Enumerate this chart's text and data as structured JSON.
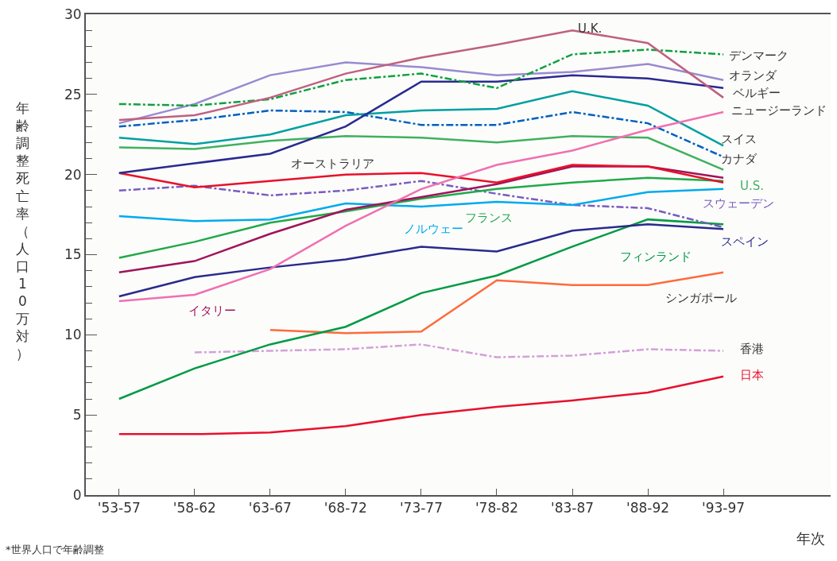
{
  "chart_data": {
    "type": "line",
    "xlabel": "年次",
    "ylabel": "年齢調整死亡率（人口10万対）",
    "annotations": [
      "*世界人口で年齢調整"
    ],
    "categories": [
      "'53-57",
      "'58-62",
      "'63-67",
      "'68-72",
      "'73-77",
      "'78-82",
      "'83-87",
      "'88-92",
      "'93-97"
    ],
    "ylim": [
      0,
      30
    ],
    "yticks": [
      0,
      5,
      10,
      15,
      20,
      25,
      30
    ],
    "grid": false,
    "legend": false,
    "series": [
      {
        "name": "日本",
        "color": "#e8102d",
        "values": [
          3.8,
          3.8,
          3.9,
          4.3,
          5.0,
          5.5,
          5.9,
          6.4,
          7.4
        ]
      },
      {
        "name": "香港",
        "color": "#d4a0d8",
        "line_style": "dashed",
        "values": [
          null,
          8.9,
          9.0,
          9.1,
          9.4,
          8.6,
          8.7,
          9.1,
          9.0
        ]
      },
      {
        "name": "シンガポール",
        "color": "#ff6a3c",
        "values": [
          null,
          null,
          10.3,
          10.1,
          10.2,
          13.4,
          13.1,
          13.1,
          13.9
        ]
      },
      {
        "name": "フィンランド",
        "color": "#009a44",
        "values": [
          6.0,
          7.9,
          9.4,
          10.5,
          12.6,
          13.7,
          15.5,
          17.2,
          16.9
        ]
      },
      {
        "name": "スペイン",
        "color": "#2a2a8c",
        "values": [
          12.4,
          13.6,
          14.2,
          14.7,
          15.5,
          15.2,
          16.5,
          16.9,
          16.6
        ]
      },
      {
        "name": "スウェーデン",
        "color": "#7a5cc0",
        "line_style": "dashed",
        "values": [
          19.0,
          19.3,
          18.7,
          19.0,
          19.6,
          18.8,
          18.1,
          17.9,
          16.7
        ]
      },
      {
        "name": "ノルウェー",
        "color": "#00aaee",
        "values": [
          17.4,
          17.1,
          17.2,
          18.2,
          18.0,
          18.3,
          18.1,
          18.9,
          19.1
        ]
      },
      {
        "name": "フランス",
        "color": "#22a84a",
        "values": [
          14.8,
          15.8,
          17.0,
          17.7,
          18.5,
          19.1,
          19.5,
          19.8,
          19.6
        ]
      },
      {
        "name": "イタリー",
        "color": "#a0145a",
        "values": [
          13.9,
          14.6,
          16.3,
          17.8,
          18.6,
          19.4,
          20.5,
          20.5,
          19.8
        ]
      },
      {
        "name": "オーストラリア",
        "color": "#e8102a",
        "values": [
          20.1,
          19.2,
          19.6,
          20.0,
          20.1,
          19.5,
          20.6,
          20.5,
          19.5
        ]
      },
      {
        "name": "U.S.",
        "color": "#40b060",
        "values": [
          21.7,
          21.6,
          22.1,
          22.4,
          22.3,
          22.0,
          22.4,
          22.3,
          20.3
        ]
      },
      {
        "name": "カナダ",
        "color": "#0060c0",
        "line_style": "dashed",
        "values": [
          23.0,
          23.4,
          24.0,
          23.9,
          23.1,
          23.1,
          23.9,
          23.2,
          21.1
        ]
      },
      {
        "name": "スイス",
        "color": "#00a0a0",
        "values": [
          22.3,
          21.9,
          22.5,
          23.7,
          24.0,
          24.1,
          25.2,
          24.3,
          21.8
        ]
      },
      {
        "name": "ニュージーランド",
        "color": "#f070b0",
        "values": [
          12.1,
          12.5,
          14.1,
          16.8,
          19.1,
          20.6,
          21.5,
          22.8,
          23.9
        ]
      },
      {
        "name": "ベルギー",
        "color": "#2a2a90",
        "values": [
          20.1,
          20.7,
          21.3,
          23.0,
          25.8,
          25.8,
          26.2,
          26.0,
          25.4
        ]
      },
      {
        "name": "オランダ",
        "color": "#9a8ad0",
        "values": [
          23.2,
          24.4,
          26.2,
          27.0,
          26.7,
          26.2,
          26.4,
          26.9,
          25.9
        ]
      },
      {
        "name": "デンマーク",
        "color": "#10a040",
        "line_style": "dashed",
        "values": [
          24.4,
          24.3,
          24.7,
          25.9,
          26.3,
          25.4,
          27.5,
          27.8,
          27.5
        ]
      },
      {
        "name": "U.K.",
        "color": "#c06080",
        "values": [
          23.4,
          23.7,
          24.8,
          26.3,
          27.3,
          28.1,
          29.0,
          28.2,
          24.8
        ]
      }
    ]
  }
}
